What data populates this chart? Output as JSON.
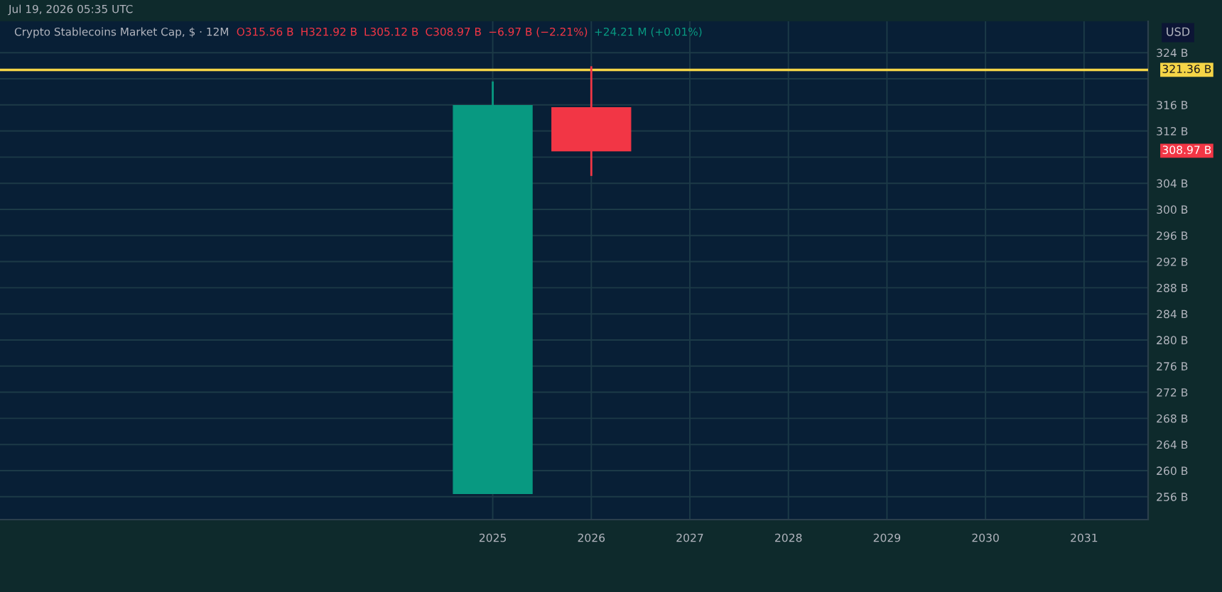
{
  "chart_data": {
    "type": "candlestick",
    "title": "Crypto Stablecoins Market Cap, $ · 12M",
    "annotations": [
      "Jul 19, 2026 05:35 UTC",
      "O315.56 B",
      "H321.92 B",
      "L305.12 B",
      "C308.97 B",
      "−6.97 B (−2.21%)",
      "+24.21 M (+0.01%)",
      "308.97 B"
    ],
    "ylabel": "USD",
    "x": [
      2025,
      2026
    ],
    "ohlc": [
      [
        256.5,
        319.6,
        256.5,
        315.9
      ],
      [
        315.56,
        321.92,
        305.12,
        308.97
      ]
    ],
    "colors": [
      "#089981",
      "#f23645"
    ],
    "xlim": [
      2020.0,
      2031.65
    ],
    "xticks": [
      2025,
      2026,
      2027,
      2028,
      2029,
      2030,
      2031
    ],
    "ylim": [
      252.5,
      328.8
    ],
    "yticks": [
      {
        "value": 256,
        "label": "256 B"
      },
      {
        "value": 260,
        "label": "260 B"
      },
      {
        "value": 264,
        "label": "264 B"
      },
      {
        "value": 268,
        "label": "268 B"
      },
      {
        "value": 272,
        "label": "272 B"
      },
      {
        "value": 276,
        "label": "276 B"
      },
      {
        "value": 280,
        "label": "280 B"
      },
      {
        "value": 284,
        "label": "284 B"
      },
      {
        "value": 288,
        "label": "288 B"
      },
      {
        "value": 292,
        "label": "292 B"
      },
      {
        "value": 296,
        "label": "296 B"
      },
      {
        "value": 300,
        "label": "300 B"
      },
      {
        "value": 304,
        "label": "304 B"
      },
      {
        "value": 308,
        "label": null
      },
      {
        "value": 312,
        "label": "312 B"
      },
      {
        "value": 316,
        "label": "316 B"
      },
      {
        "value": 320,
        "label": null
      },
      {
        "value": 324,
        "label": "324 B"
      }
    ],
    "ref_lines": [
      {
        "axis": "y",
        "value": 321.36,
        "label": "321.36 B",
        "color": "#f5d547",
        "line_style": "solid"
      }
    ],
    "grid": true
  }
}
